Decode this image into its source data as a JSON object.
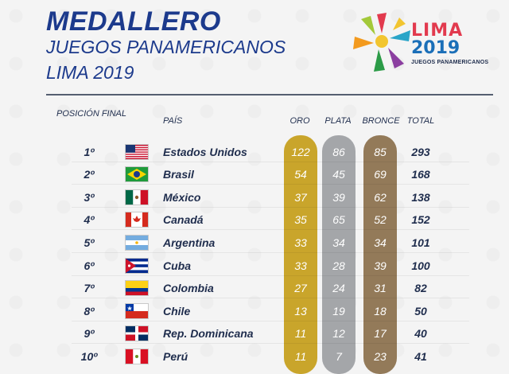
{
  "header": {
    "title": "MEDALLERO",
    "subtitle1": "JUEGOS PANAMERICANOS",
    "subtitle2": "LIMA 2019"
  },
  "logo": {
    "line1": "LIMA",
    "line2": "2019",
    "line3": "JUEGOS PANAMERICANOS"
  },
  "columns": {
    "position": "POSICIÓN FINAL",
    "country": "PAÍS",
    "gold": "ORO",
    "silver": "PLATA",
    "bronze": "BRONCE",
    "total": "TOTAL"
  },
  "colors": {
    "gold": "#c9a52b",
    "silver": "#a4a6a9",
    "bronze": "#937a59",
    "title": "#1c3a8c"
  },
  "rows": [
    {
      "pos": "1º",
      "country": "Estados Unidos",
      "flag": "usa-flag-icon",
      "gold": "122",
      "silver": "86",
      "bronze": "85",
      "total": "293"
    },
    {
      "pos": "2º",
      "country": "Brasil",
      "flag": "brazil-flag-icon",
      "gold": "54",
      "silver": "45",
      "bronze": "69",
      "total": "168"
    },
    {
      "pos": "3º",
      "country": "México",
      "flag": "mexico-flag-icon",
      "gold": "37",
      "silver": "39",
      "bronze": "62",
      "total": "138"
    },
    {
      "pos": "4º",
      "country": "Canadá",
      "flag": "canada-flag-icon",
      "gold": "35",
      "silver": "65",
      "bronze": "52",
      "total": "152"
    },
    {
      "pos": "5º",
      "country": "Argentina",
      "flag": "argentina-flag-icon",
      "gold": "33",
      "silver": "34",
      "bronze": "34",
      "total": "101"
    },
    {
      "pos": "6º",
      "country": "Cuba",
      "flag": "cuba-flag-icon",
      "gold": "33",
      "silver": "28",
      "bronze": "39",
      "total": "100"
    },
    {
      "pos": "7º",
      "country": "Colombia",
      "flag": "colombia-flag-icon",
      "gold": "27",
      "silver": "24",
      "bronze": "31",
      "total": "82"
    },
    {
      "pos": "8º",
      "country": "Chile",
      "flag": "chile-flag-icon",
      "gold": "13",
      "silver": "19",
      "bronze": "18",
      "total": "50"
    },
    {
      "pos": "9º",
      "country": "Rep. Dominicana",
      "flag": "dominican-republic-flag-icon",
      "gold": "11",
      "silver": "12",
      "bronze": "17",
      "total": "40"
    },
    {
      "pos": "10º",
      "country": "Perú",
      "flag": "peru-flag-icon",
      "gold": "11",
      "silver": "7",
      "bronze": "23",
      "total": "41"
    }
  ]
}
